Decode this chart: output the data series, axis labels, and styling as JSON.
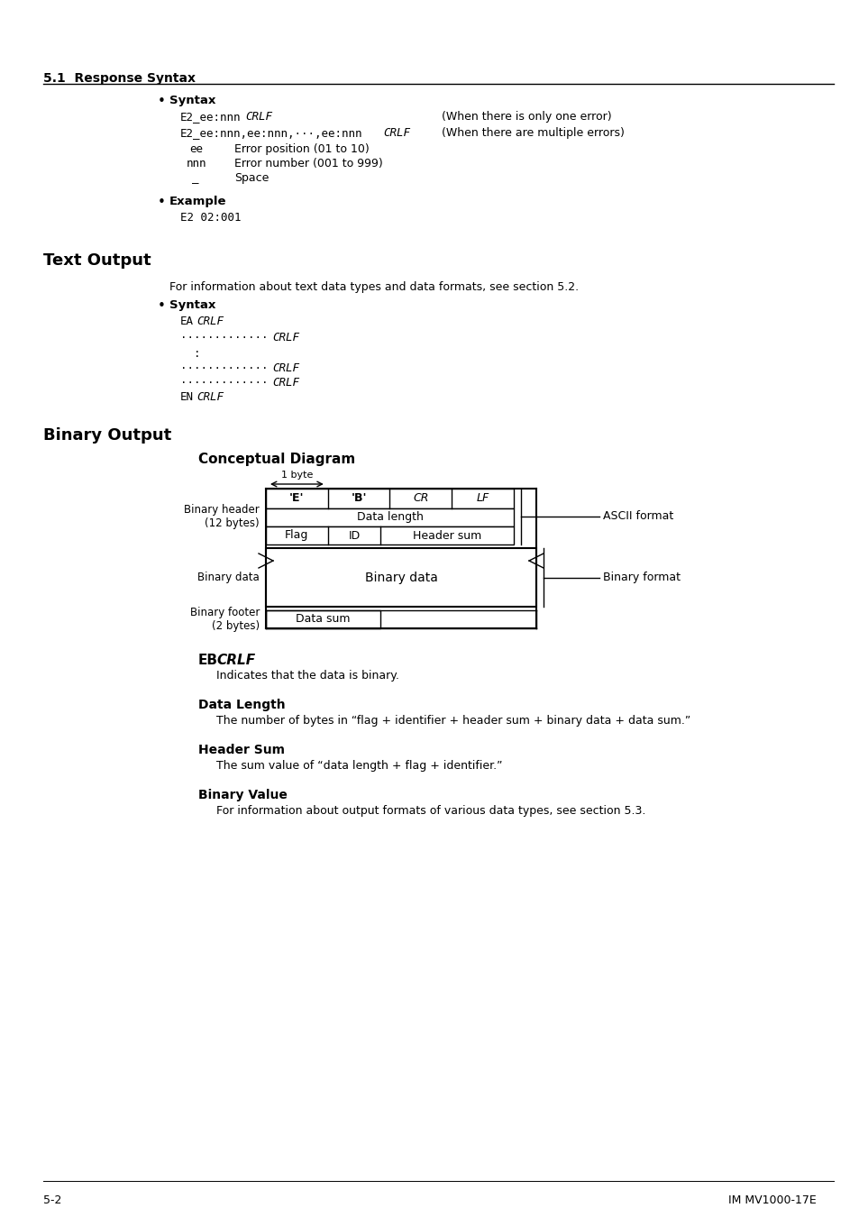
{
  "page_title": "5.1  Response Syntax",
  "section1_bullet1_title": "Syntax",
  "syntax1_line1_comment": "(When there is only one error)",
  "syntax1_line2_comment": "(When there are multiple errors)",
  "syntax1_param1": "ee",
  "syntax1_param1_desc": "Error position (01 to 10)",
  "syntax1_param2": "nnn",
  "syntax1_param2_desc": "Error number (001 to 999)",
  "syntax1_param3": "_",
  "syntax1_param3_desc": "Space",
  "section1_bullet2_title": "Example",
  "example_code": "E2 02:001",
  "section2_title": "Text Output",
  "text_output_desc": "For information about text data types and data formats, see section 5.2.",
  "section2_bullet1_title": "Syntax",
  "section3_title": "Binary Output",
  "diagram_title": "Conceptual Diagram",
  "diagram_label_1byte": "1 byte",
  "diagram_cell_E": "'E'",
  "diagram_cell_B": "'B'",
  "diagram_cell_CR": "CR",
  "diagram_cell_LF": "LF",
  "diagram_ascii_label": "ASCII format",
  "diagram_data_length": "Data length",
  "diagram_flag": "Flag",
  "diagram_id": "ID",
  "diagram_header_sum": "Header sum",
  "diagram_binary_header_label": "Binary header\n(12 bytes)",
  "diagram_binary_data_label": "Binary data",
  "diagram_binary_data_cell": "Binary data",
  "diagram_binary_format": "Binary format",
  "diagram_binary_footer_label": "Binary footer\n(2 bytes)",
  "diagram_data_sum": "Data sum",
  "ebcrlf_desc": "Indicates that the data is binary.",
  "data_length_title": "Data Length",
  "data_length_desc": "The number of bytes in “flag + identifier + header sum + binary data + data sum.”",
  "header_sum_title": "Header Sum",
  "header_sum_desc": "The sum value of “data length + flag + identifier.”",
  "binary_value_title": "Binary Value",
  "binary_value_desc": "For information about output formats of various data types, see section 5.3.",
  "footer_left": "5-2",
  "footer_right": "IM MV1000-17E",
  "bg_color": "#ffffff",
  "text_color": "#000000"
}
